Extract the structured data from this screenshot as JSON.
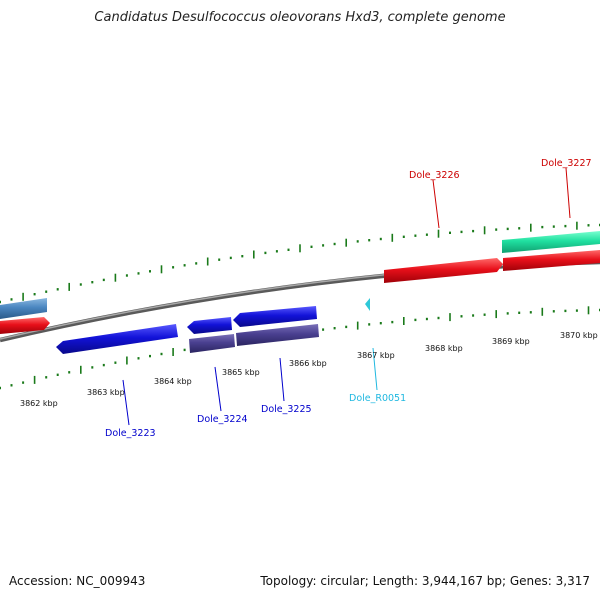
{
  "title": "Candidatus Desulfococcus oleovorans Hxd3, complete genome",
  "footer": {
    "accession": "Accession: NC_009943",
    "summary": "Topology: circular; Length: 3,944,167 bp; Genes: 3,317"
  },
  "colors": {
    "forward_gene": "#e8101a",
    "reverse_gene": "#1212d8",
    "rna_gene": "#2ec8d8",
    "cds_reverse": "#4a4090",
    "feature_green": "#20e0a0",
    "feature_steelblue": "#4a86c0",
    "tick": "#1a7a1a",
    "backbone": "#8a8a8a",
    "label_forward": "#cc0000",
    "label_reverse": "#0000cc",
    "label_rna": "#20b8e0"
  },
  "scale_labels": [
    {
      "text": "3862 kbp"
    },
    {
      "text": "3863 kbp"
    },
    {
      "text": "3864 kbp"
    },
    {
      "text": "3865 kbp"
    },
    {
      "text": "3866 kbp"
    },
    {
      "text": "3867 kbp"
    },
    {
      "text": "3868 kbp"
    },
    {
      "text": "3869 kbp"
    },
    {
      "text": "3870 kbp"
    }
  ],
  "gene_labels": [
    {
      "text": "Dole_3223",
      "strand": "reverse"
    },
    {
      "text": "Dole_3224",
      "strand": "reverse"
    },
    {
      "text": "Dole_3225",
      "strand": "reverse"
    },
    {
      "text": "Dole_R0051",
      "strand": "rna"
    },
    {
      "text": "Dole_3226",
      "strand": "forward"
    },
    {
      "text": "Dole_3227",
      "strand": "forward"
    }
  ]
}
